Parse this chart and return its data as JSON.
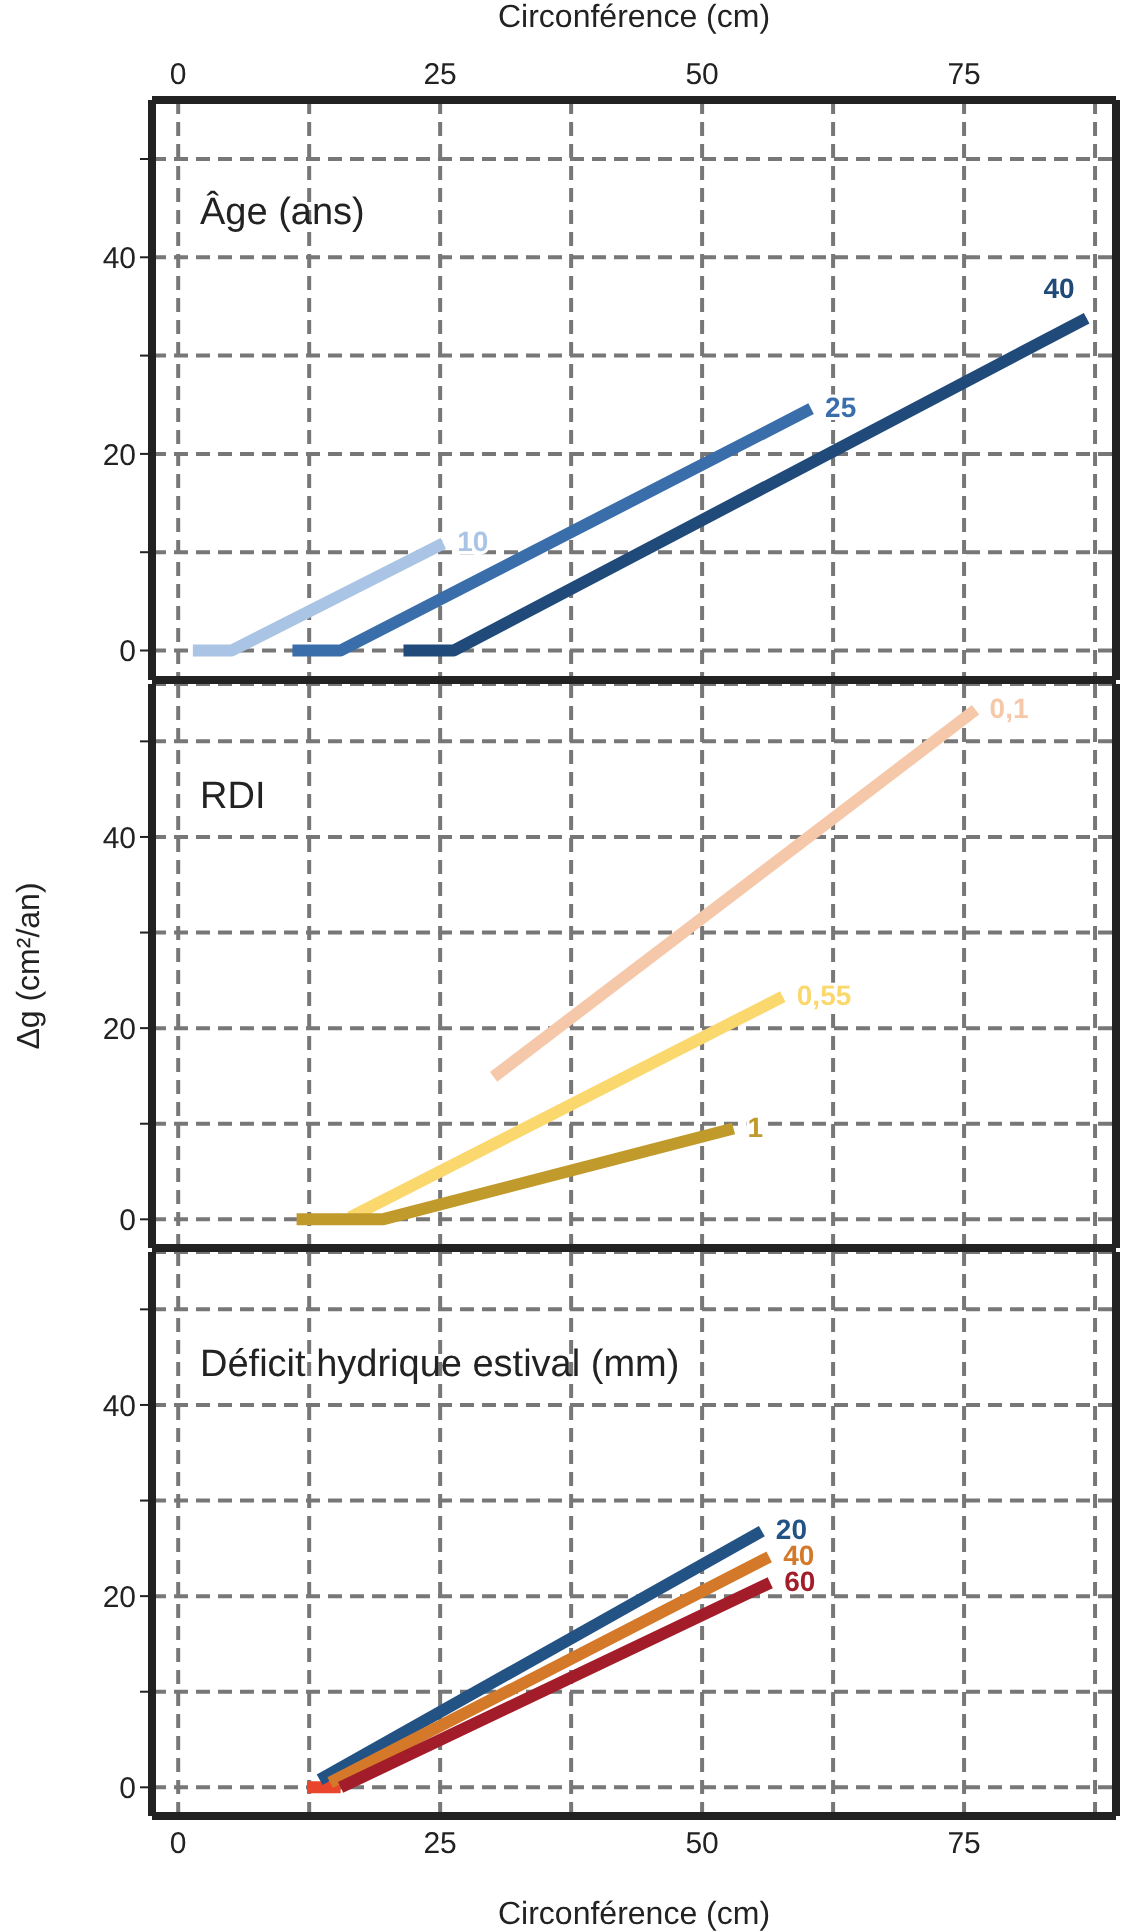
{
  "chart_data": [
    {
      "type": "line",
      "legend_title": "Âge (ans)",
      "x2label": "Circonférence (cm)",
      "xlim": [
        -2.5,
        89.5
      ],
      "x2lim": [
        -2.5,
        89.5
      ],
      "xticks": [
        0,
        {
          "value": 12.5,
          "label": null
        },
        25,
        {
          "value": 37.5,
          "label": null
        },
        50,
        {
          "value": 62.5,
          "label": null
        },
        75,
        {
          "value": 87.5,
          "label": null
        }
      ],
      "x2ticks": [
        0,
        25,
        50,
        75
      ],
      "ylim": [
        -3,
        56
      ],
      "yticks": [
        0,
        {
          "value": 10,
          "label": null
        },
        20,
        {
          "value": 30,
          "label": null
        },
        40,
        {
          "value": 50,
          "label": null
        }
      ],
      "grid": true,
      "tick_labels": "y",
      "line_style": "solid",
      "marker": "none",
      "series": [
        {
          "name": "10",
          "color": "#a9c4e4",
          "x": [
            1.4,
            5.1,
            25.3
          ],
          "values": [
            0,
            0,
            10.9
          ]
        },
        {
          "name": "25",
          "color": "#3a6eab",
          "x": [
            10.9,
            15.5,
            60.4
          ],
          "values": [
            0,
            0,
            24.6
          ]
        },
        {
          "name": "40",
          "color": "#1f4a7a",
          "x": [
            21.5,
            26.3,
            86.7
          ],
          "values": [
            0,
            0,
            33.8
          ]
        }
      ]
    },
    {
      "type": "line",
      "legend_title": "RDI",
      "ylabel": "Δg (cm²/an)",
      "xlim": [
        -2.5,
        89.5
      ],
      "xticks": [
        0,
        {
          "value": 12.5,
          "label": null
        },
        25,
        {
          "value": 37.5,
          "label": null
        },
        50,
        {
          "value": 62.5,
          "label": null
        },
        75,
        {
          "value": 87.5,
          "label": null
        }
      ],
      "ylim": [
        -3,
        56
      ],
      "yticks": [
        0,
        {
          "value": 10,
          "label": null
        },
        20,
        {
          "value": 30,
          "label": null
        },
        40,
        {
          "value": 50,
          "label": null
        }
      ],
      "grid": true,
      "tick_labels": "y",
      "line_style": "solid",
      "marker": "none",
      "series": [
        {
          "name": "0,1",
          "color": "#f6c8aa",
          "x": [
            30.1,
            76.1
          ],
          "values": [
            14.9,
            53.3
          ]
        },
        {
          "name": "0,55",
          "color": "#fbd86e",
          "x": [
            16.4,
            57.7
          ],
          "values": [
            0.2,
            23.3
          ]
        },
        {
          "name": "1",
          "color": "#c09a2a",
          "x": [
            11.3,
            19.5,
            53
          ],
          "values": [
            0,
            0,
            9.5
          ]
        }
      ]
    },
    {
      "type": "line",
      "legend_title": "Déficit hydrique estival (mm)",
      "xlabel": "Circonférence (cm)",
      "xlim": [
        -2.5,
        89.5
      ],
      "xticks": [
        0,
        {
          "value": 12.5,
          "label": null
        },
        25,
        {
          "value": 37.5,
          "label": null
        },
        50,
        {
          "value": 62.5,
          "label": null
        },
        75,
        {
          "value": 87.5,
          "label": null
        }
      ],
      "ylim": [
        -3,
        56
      ],
      "yticks": [
        0,
        {
          "value": 10,
          "label": null
        },
        20,
        {
          "value": 30,
          "label": null
        },
        40,
        {
          "value": 50,
          "label": null
        }
      ],
      "grid": true,
      "line_style": "solid",
      "marker": "none",
      "series": [
        {
          "color": "#e8452c",
          "x": [
            12.3,
            15.5
          ],
          "values": [
            0,
            0
          ]
        },
        {
          "name": "20",
          "color": "#235285",
          "x": [
            13.5,
            55.7
          ],
          "values": [
            0.8,
            26.8
          ]
        },
        {
          "name": "40",
          "color": "#d4792a",
          "x": [
            14.5,
            56.4
          ],
          "values": [
            0.5,
            24.1
          ]
        },
        {
          "name": "60",
          "color": "#a31c2a",
          "x": [
            15.5,
            56.5
          ],
          "values": [
            0,
            21.4
          ]
        }
      ]
    }
  ]
}
